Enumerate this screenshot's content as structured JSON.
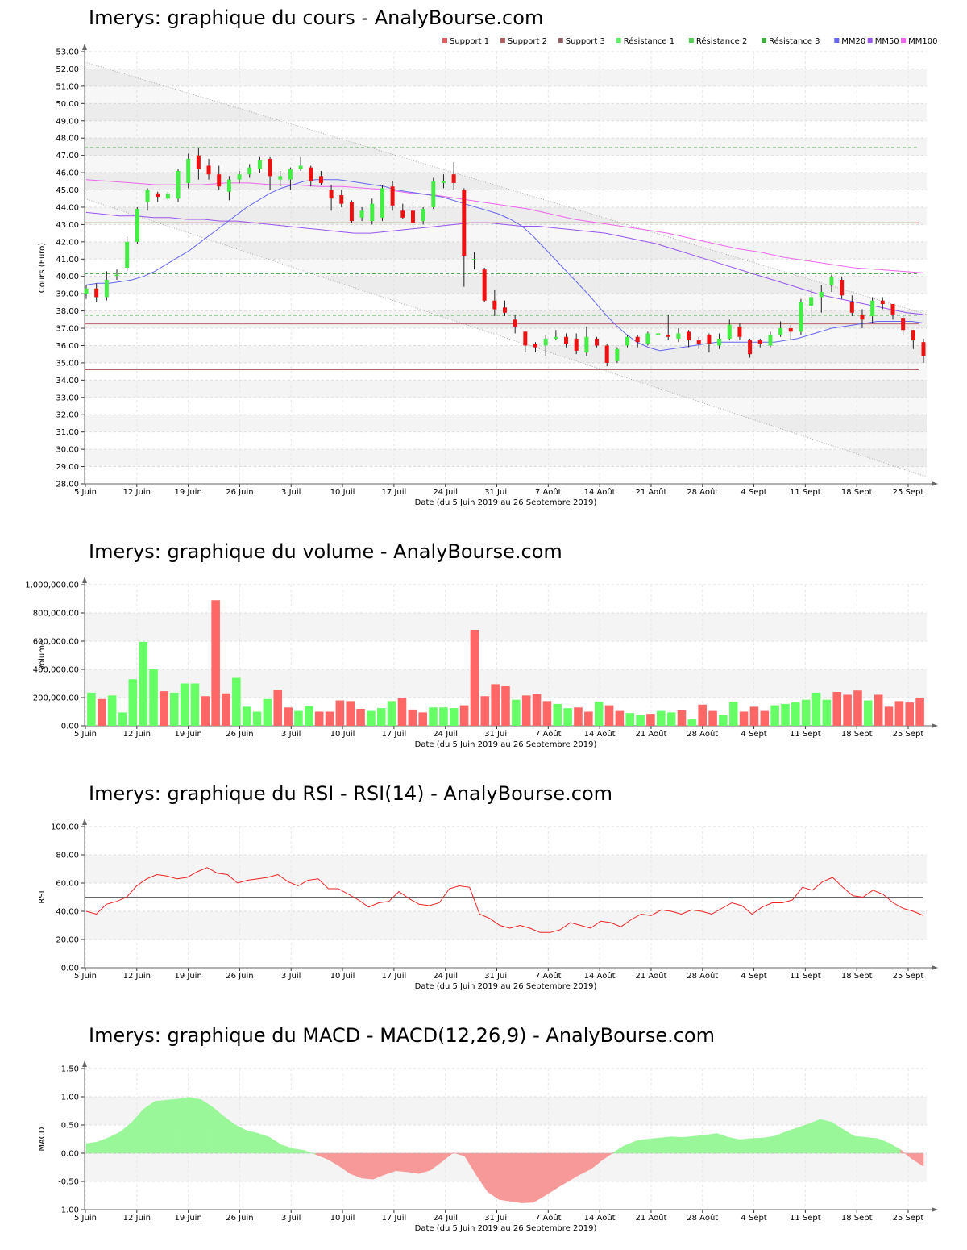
{
  "titles": {
    "price": "Imerys: graphique du cours - AnalyBourse.com",
    "volume": "Imerys: graphique du volume - AnalyBourse.com",
    "rsi": "Imerys: graphique du RSI - RSI(14) - AnalyBourse.com",
    "macd": "Imerys: graphique du MACD - MACD(12,26,9) - AnalyBourse.com"
  },
  "colors": {
    "up": "#44ee44",
    "down": "#ee1111",
    "vol_up": "#66ff66",
    "vol_down": "#ff6666",
    "support": "#bb6666",
    "resistance": "#55aa55",
    "mm20": "#6666ee",
    "mm50": "#9955ee",
    "mm100": "#ee66ee",
    "rsi": "#ee2222",
    "macd_pos": "#99f799",
    "macd_neg": "#f79999"
  },
  "chart_data": [
    {
      "type": "candlestick",
      "title": "Imerys: graphique du cours - AnalyBourse.com",
      "xlabel": "Date (du 5 Juin 2019 au 26 Septembre 2019)",
      "ylabel": "Cours (Euro)",
      "ylim": [
        28,
        53
      ],
      "ytick_step": 1,
      "ytick_decimals": 2,
      "grid": true,
      "legend_position": "top-right",
      "x_tick_labels": [
        "5 Juin",
        "12 Juin",
        "19 Juin",
        "26 Juin",
        "3 Juil",
        "10 Juil",
        "17 Juil",
        "24 Juil",
        "31 Juil",
        "7 Août",
        "14 Août",
        "21 Août",
        "28 Août",
        "4 Sept",
        "11 Sept",
        "18 Sept",
        "25 Sept"
      ],
      "legend": [
        {
          "label": "Support 1",
          "color": "#e06060"
        },
        {
          "label": "Support 2",
          "color": "#b06060"
        },
        {
          "label": "Support 3",
          "color": "#906060"
        },
        {
          "label": "Résistance 1",
          "color": "#66ee66"
        },
        {
          "label": "Résistance 2",
          "color": "#55cc55"
        },
        {
          "label": "Résistance 3",
          "color": "#44aa44"
        },
        {
          "label": "MM20",
          "color": "#6666ee"
        },
        {
          "label": "MM50",
          "color": "#9955ee"
        },
        {
          "label": "MM100",
          "color": "#ee66ee"
        }
      ],
      "support_levels": [
        43.1,
        37.25,
        34.6
      ],
      "resistance_levels": [
        47.45,
        40.15,
        37.75
      ],
      "trend_channel": {
        "upper": [
          52.4,
          37.8
        ],
        "lower": [
          44.5,
          28.4
        ]
      },
      "candles": [
        [
          39.0,
          39.3,
          38.7,
          39.5
        ],
        [
          39.3,
          38.8,
          38.5,
          39.6
        ],
        [
          38.8,
          39.8,
          38.6,
          40.3
        ],
        [
          40.1,
          40.1,
          39.8,
          40.4
        ],
        [
          40.5,
          42.0,
          40.3,
          42.3
        ],
        [
          42.0,
          43.9,
          41.9,
          44.0
        ],
        [
          44.3,
          45.0,
          43.8,
          45.1
        ],
        [
          44.8,
          44.6,
          44.3,
          44.9
        ],
        [
          44.5,
          44.8,
          44.4,
          44.9
        ],
        [
          44.5,
          46.1,
          44.3,
          46.2
        ],
        [
          45.4,
          46.8,
          45.1,
          47.1
        ],
        [
          47.0,
          46.2,
          45.6,
          47.4
        ],
        [
          46.4,
          45.9,
          45.6,
          46.8
        ],
        [
          45.9,
          45.2,
          45.0,
          46.4
        ],
        [
          44.9,
          45.6,
          44.4,
          45.8
        ],
        [
          45.6,
          45.9,
          45.4,
          46.1
        ],
        [
          45.9,
          46.3,
          45.7,
          46.5
        ],
        [
          46.2,
          46.7,
          46.0,
          46.9
        ],
        [
          46.8,
          45.8,
          45.0,
          46.9
        ],
        [
          45.6,
          45.8,
          45.2,
          46.1
        ],
        [
          45.6,
          46.2,
          45.0,
          46.3
        ],
        [
          46.2,
          46.4,
          46.1,
          46.9
        ],
        [
          46.3,
          45.5,
          45.2,
          46.4
        ],
        [
          45.8,
          45.4,
          45.3,
          46.1
        ],
        [
          45.0,
          44.5,
          43.8,
          45.3
        ],
        [
          44.7,
          44.2,
          44.0,
          45.0
        ],
        [
          44.3,
          43.2,
          43.1,
          44.4
        ],
        [
          43.4,
          43.8,
          43.2,
          44.0
        ],
        [
          43.2,
          44.2,
          43.0,
          44.5
        ],
        [
          43.4,
          45.1,
          43.2,
          45.3
        ],
        [
          45.2,
          44.1,
          43.8,
          45.5
        ],
        [
          43.8,
          43.4,
          43.3,
          44.2
        ],
        [
          43.8,
          43.1,
          42.9,
          44.3
        ],
        [
          43.2,
          43.9,
          43.0,
          44.0
        ],
        [
          44.0,
          45.5,
          43.9,
          45.7
        ],
        [
          45.4,
          45.5,
          45.1,
          45.9
        ],
        [
          45.9,
          45.4,
          45.0,
          46.6
        ],
        [
          45.0,
          41.2,
          39.4,
          45.1
        ],
        [
          41.0,
          41.0,
          40.4,
          41.4
        ],
        [
          40.4,
          38.6,
          38.5,
          40.5
        ],
        [
          38.6,
          38.1,
          37.7,
          39.2
        ],
        [
          38.2,
          37.9,
          37.7,
          38.6
        ],
        [
          37.5,
          37.1,
          36.7,
          37.8
        ],
        [
          36.8,
          36.0,
          35.6,
          36.8
        ],
        [
          36.1,
          35.9,
          35.6,
          36.2
        ],
        [
          36.0,
          36.4,
          35.4,
          36.6
        ],
        [
          36.4,
          36.5,
          36.3,
          36.9
        ],
        [
          36.5,
          36.1,
          35.9,
          36.7
        ],
        [
          36.4,
          35.7,
          35.5,
          36.7
        ],
        [
          35.6,
          36.5,
          35.4,
          37.1
        ],
        [
          36.4,
          36.0,
          35.9,
          36.5
        ],
        [
          36.0,
          35.0,
          34.8,
          36.1
        ],
        [
          35.1,
          35.8,
          35.0,
          35.9
        ],
        [
          36.0,
          36.5,
          35.9,
          36.6
        ],
        [
          36.5,
          36.2,
          35.9,
          36.6
        ],
        [
          36.1,
          36.7,
          36.0,
          36.8
        ],
        [
          36.7,
          36.7,
          36.6,
          37.1
        ],
        [
          36.6,
          36.5,
          36.3,
          37.8
        ],
        [
          36.4,
          36.7,
          36.2,
          37.0
        ],
        [
          36.8,
          36.3,
          35.9,
          36.9
        ],
        [
          36.3,
          36.1,
          35.8,
          36.5
        ],
        [
          36.6,
          36.1,
          35.6,
          36.7
        ],
        [
          36.0,
          36.4,
          35.8,
          36.7
        ],
        [
          36.4,
          37.2,
          36.3,
          37.5
        ],
        [
          37.1,
          36.5,
          36.3,
          37.3
        ],
        [
          36.3,
          35.5,
          35.3,
          36.4
        ],
        [
          36.3,
          36.1,
          35.9,
          36.4
        ],
        [
          36.0,
          36.6,
          35.9,
          36.8
        ],
        [
          36.6,
          37.0,
          36.5,
          37.4
        ],
        [
          37.0,
          36.8,
          36.3,
          37.2
        ],
        [
          36.8,
          38.5,
          36.6,
          38.7
        ],
        [
          38.3,
          38.8,
          37.6,
          39.3
        ],
        [
          38.8,
          39.1,
          37.9,
          39.5
        ],
        [
          39.5,
          40.0,
          39.1,
          40.1
        ],
        [
          39.8,
          38.9,
          38.7,
          40.0
        ],
        [
          38.5,
          37.9,
          37.7,
          38.9
        ],
        [
          37.8,
          37.5,
          37.0,
          38.1
        ],
        [
          37.7,
          38.6,
          37.3,
          38.8
        ],
        [
          38.6,
          38.4,
          38.1,
          38.8
        ],
        [
          38.4,
          37.8,
          37.5,
          38.4
        ],
        [
          37.6,
          36.9,
          36.6,
          37.7
        ],
        [
          36.9,
          36.3,
          35.8,
          36.9
        ],
        [
          36.2,
          35.4,
          35.0,
          36.4
        ]
      ],
      "mm20": [
        39.5,
        39.6,
        39.6,
        39.7,
        39.8,
        40.0,
        40.3,
        40.7,
        41.1,
        41.5,
        42.0,
        42.5,
        43.0,
        43.5,
        44.0,
        44.4,
        44.8,
        45.1,
        45.3,
        45.5,
        45.6,
        45.6,
        45.6,
        45.5,
        45.4,
        45.3,
        45.2,
        45.0,
        44.9,
        44.8,
        44.7,
        44.6,
        44.4,
        44.2,
        44.0,
        43.8,
        43.6,
        43.3,
        42.9,
        42.3,
        41.6,
        40.9,
        40.2,
        39.5,
        38.8,
        38.0,
        37.3,
        36.7,
        36.2,
        35.9,
        35.7,
        35.8,
        35.9,
        36.0,
        36.1,
        36.2,
        36.2,
        36.2,
        36.2,
        36.2,
        36.2,
        36.3,
        36.4,
        36.6,
        36.8,
        37.0,
        37.1,
        37.2,
        37.3,
        37.4,
        37.4,
        37.4,
        37.4,
        37.3
      ],
      "mm50": [
        43.7,
        43.6,
        43.5,
        43.5,
        43.4,
        43.4,
        43.3,
        43.3,
        43.2,
        43.2,
        43.1,
        43.0,
        42.9,
        42.8,
        42.7,
        42.6,
        42.5,
        42.5,
        42.6,
        42.7,
        42.8,
        42.9,
        43.0,
        43.1,
        43.1,
        43.0,
        42.9,
        42.9,
        42.8,
        42.7,
        42.6,
        42.5,
        42.3,
        42.1,
        41.9,
        41.6,
        41.3,
        41.0,
        40.7,
        40.4,
        40.1,
        39.8,
        39.5,
        39.2,
        38.9,
        38.7,
        38.5,
        38.3,
        38.1,
        37.9,
        37.8
      ],
      "mm100": [
        45.6,
        45.5,
        45.4,
        45.3,
        45.3,
        45.3,
        45.4,
        45.4,
        45.3,
        45.3,
        45.2,
        45.2,
        45.1,
        45.0,
        44.8,
        44.7,
        44.5,
        44.3,
        44.1,
        43.9,
        43.6,
        43.3,
        43.1,
        42.9,
        42.7,
        42.5,
        42.2,
        41.9,
        41.6,
        41.4,
        41.1,
        40.9,
        40.7,
        40.5,
        40.4,
        40.3,
        40.2
      ]
    },
    {
      "type": "bar",
      "title": "Imerys: graphique du volume - AnalyBourse.com",
      "xlabel": "Date (du 5 Juin 2019 au 26 Septembre 2019)",
      "ylabel": "Volume",
      "ylim": [
        0,
        1000000
      ],
      "y_ticks": [
        "0.00",
        "200,000.00",
        "400,000.00",
        "600,000.00",
        "800,000.00",
        "1,000,000.00"
      ],
      "x_tick_labels": [
        "5 Juin",
        "12 Juin",
        "19 Juin",
        "26 Juin",
        "3 Juil",
        "10 Juil",
        "17 Juil",
        "24 Juil",
        "31 Juil",
        "7 Août",
        "14 Août",
        "21 Août",
        "28 Août",
        "4 Sept",
        "11 Sept",
        "18 Sept",
        "25 Sept"
      ],
      "values": [
        235000,
        190000,
        215000,
        95000,
        330000,
        595000,
        400000,
        245000,
        235000,
        300000,
        300000,
        210000,
        890000,
        230000,
        340000,
        135000,
        100000,
        190000,
        255000,
        130000,
        105000,
        140000,
        100000,
        100000,
        180000,
        175000,
        120000,
        105000,
        125000,
        175000,
        195000,
        115000,
        95000,
        130000,
        130000,
        125000,
        145000,
        680000,
        210000,
        295000,
        280000,
        185000,
        215000,
        225000,
        175000,
        155000,
        125000,
        130000,
        100000,
        170000,
        145000,
        105000,
        90000,
        80000,
        85000,
        105000,
        95000,
        110000,
        45000,
        150000,
        105000,
        80000,
        170000,
        100000,
        135000,
        105000,
        145000,
        155000,
        165000,
        185000,
        235000,
        185000,
        240000,
        220000,
        250000,
        180000,
        220000,
        135000,
        175000,
        165000,
        200000
      ],
      "up": [
        true,
        false,
        true,
        true,
        true,
        true,
        true,
        false,
        true,
        true,
        true,
        false,
        false,
        false,
        true,
        true,
        true,
        true,
        false,
        false,
        true,
        true,
        false,
        false,
        false,
        false,
        false,
        true,
        true,
        true,
        false,
        false,
        false,
        true,
        true,
        true,
        false,
        false,
        false,
        false,
        false,
        true,
        false,
        false,
        false,
        true,
        true,
        false,
        false,
        true,
        false,
        false,
        true,
        true,
        false,
        true,
        true,
        false,
        true,
        false,
        false,
        true,
        true,
        false,
        false,
        false,
        true,
        true,
        true,
        true,
        true,
        true,
        false,
        false,
        false,
        true,
        false,
        false,
        false,
        false,
        false
      ]
    },
    {
      "type": "line",
      "title": "Imerys: graphique du RSI - RSI(14) - AnalyBourse.com",
      "xlabel": "Date (du 5 Juin 2019 au 26 Septembre 2019)",
      "ylabel": "RSI",
      "ylim": [
        0,
        100
      ],
      "ytick_step": 20,
      "ytick_decimals": 2,
      "reference_line": 50,
      "x_tick_labels": [
        "5 Juin",
        "12 Juin",
        "19 Juin",
        "26 Juin",
        "3 Juil",
        "10 Juil",
        "17 Juil",
        "24 Juil",
        "31 Juil",
        "7 Août",
        "14 Août",
        "21 Août",
        "28 Août",
        "4 Sept",
        "11 Sept",
        "18 Sept",
        "25 Sept"
      ],
      "values": [
        40,
        38,
        45,
        47,
        50,
        58,
        63,
        66,
        65,
        63,
        64,
        68,
        71,
        67,
        66,
        60,
        62,
        63,
        64,
        66,
        61,
        58,
        62,
        63,
        56,
        56,
        52,
        48,
        43,
        46,
        47,
        54,
        49,
        45,
        44,
        46,
        56,
        58,
        57,
        38,
        35,
        30,
        28,
        30,
        28,
        25,
        25,
        27,
        32,
        30,
        28,
        33,
        32,
        29,
        34,
        38,
        37,
        41,
        40,
        38,
        41,
        40,
        38,
        42,
        46,
        44,
        38,
        43,
        46,
        46,
        48,
        57,
        55,
        61,
        64,
        57,
        51,
        50,
        55,
        52,
        46,
        42,
        40,
        37
      ]
    },
    {
      "type": "area",
      "title": "Imerys: graphique du MACD - MACD(12,26,9) - AnalyBourse.com",
      "xlabel": "Date (du 5 Juin 2019 au 26 Septembre 2019)",
      "ylabel": "MACD",
      "ylim": [
        -1,
        1.5
      ],
      "ytick_step": 0.5,
      "ytick_decimals": 2,
      "x_tick_labels": [
        "5 Juin",
        "12 Juin",
        "19 Juin",
        "26 Juin",
        "3 Juil",
        "10 Juil",
        "17 Juil",
        "24 Juil",
        "31 Juil",
        "7 Août",
        "14 Août",
        "21 Août",
        "28 Août",
        "4 Sept",
        "11 Sept",
        "18 Sept",
        "25 Sept"
      ],
      "values": [
        0.17,
        0.2,
        0.28,
        0.38,
        0.55,
        0.78,
        0.92,
        0.94,
        0.96,
        0.99,
        0.95,
        0.82,
        0.65,
        0.5,
        0.4,
        0.35,
        0.28,
        0.15,
        0.08,
        0.05,
        -0.02,
        -0.1,
        -0.22,
        -0.36,
        -0.44,
        -0.46,
        -0.38,
        -0.31,
        -0.33,
        -0.36,
        -0.3,
        -0.15,
        0.01,
        -0.05,
        -0.38,
        -0.68,
        -0.82,
        -0.85,
        -0.88,
        -0.87,
        -0.75,
        -0.62,
        -0.5,
        -0.38,
        -0.28,
        -0.12,
        0.02,
        0.14,
        0.22,
        0.25,
        0.27,
        0.29,
        0.28,
        0.3,
        0.32,
        0.35,
        0.28,
        0.24,
        0.26,
        0.27,
        0.3,
        0.38,
        0.45,
        0.52,
        0.6,
        0.55,
        0.42,
        0.3,
        0.28,
        0.26,
        0.18,
        0.06,
        -0.1,
        -0.23
      ]
    }
  ]
}
